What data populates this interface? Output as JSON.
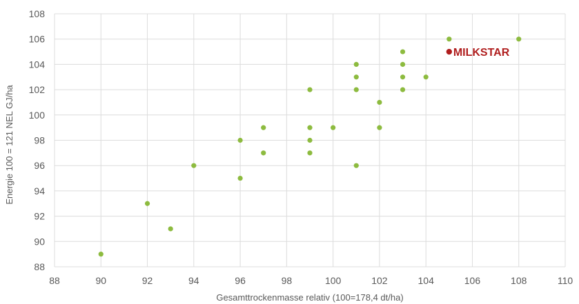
{
  "chart_data": {
    "type": "scatter",
    "title": "",
    "xlabel": "Gesamttrockenmasse relativ (100=178,4 dt/ha)",
    "ylabel": "Energie 100 = 121 NEL GJ/ha",
    "xlim": [
      88,
      110
    ],
    "ylim": [
      88,
      108
    ],
    "xticks": [
      "88",
      "90",
      "92",
      "94",
      "96",
      "98",
      "100",
      "102",
      "104",
      "106",
      "108",
      "110"
    ],
    "yticks": [
      "88",
      "90",
      "92",
      "94",
      "96",
      "98",
      "100",
      "102",
      "104",
      "106",
      "108"
    ],
    "grid": "vertical and horizontal",
    "series": [
      {
        "color": "#8dbb3f",
        "points": [
          {
            "x": 90,
            "y": 89
          },
          {
            "x": 92,
            "y": 93
          },
          {
            "x": 93,
            "y": 91
          },
          {
            "x": 94,
            "y": 96
          },
          {
            "x": 96,
            "y": 98
          },
          {
            "x": 96,
            "y": 95
          },
          {
            "x": 97,
            "y": 99
          },
          {
            "x": 97,
            "y": 97
          },
          {
            "x": 99,
            "y": 102
          },
          {
            "x": 99,
            "y": 99
          },
          {
            "x": 99,
            "y": 98
          },
          {
            "x": 99,
            "y": 97
          },
          {
            "x": 100,
            "y": 99
          },
          {
            "x": 101,
            "y": 104
          },
          {
            "x": 101,
            "y": 103
          },
          {
            "x": 101,
            "y": 102
          },
          {
            "x": 101,
            "y": 96
          },
          {
            "x": 102,
            "y": 101
          },
          {
            "x": 102,
            "y": 99
          },
          {
            "x": 103,
            "y": 105
          },
          {
            "x": 103,
            "y": 104
          },
          {
            "x": 103,
            "y": 103
          },
          {
            "x": 103,
            "y": 102
          },
          {
            "x": 104,
            "y": 103
          },
          {
            "x": 105,
            "y": 106
          },
          {
            "x": 108,
            "y": 106
          }
        ]
      }
    ],
    "highlight": {
      "label": "MILKSTAR",
      "x": 105,
      "y": 105,
      "color": "#b01e1e"
    }
  }
}
